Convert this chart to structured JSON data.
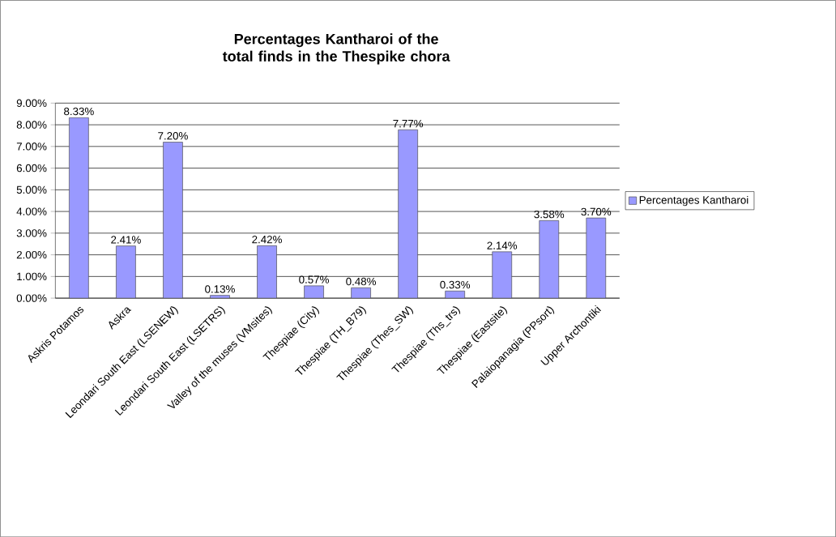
{
  "chart_data": {
    "type": "bar",
    "title": "Percentages Kantharoi of the total finds in the Thespike chora",
    "categories": [
      "Askris Potamos",
      "Askra",
      "Leondari South East (LSENEW)",
      "Leondari South East (LSETRS)",
      "Valley of the muses (VMsites)",
      "Thespiae (City)",
      "Thespiae (TH_B79)",
      "Thespiae (Thes_SW)",
      "Thespiae (Ths_trs)",
      "Thespiae (Eastsite)",
      "Palaiopanagia (PPsort)",
      "Upper Archontiki"
    ],
    "series": [
      {
        "name": "Percentages Kantharoi",
        "color": "#9999ff",
        "values": [
          8.33,
          2.41,
          7.2,
          0.13,
          2.42,
          0.57,
          0.48,
          7.77,
          0.33,
          2.14,
          3.58,
          3.7
        ],
        "value_labels": [
          "8.33%",
          "2.41%",
          "7.20%",
          "0.13%",
          "2.42%",
          "0.57%",
          "0.48%",
          "7.77%",
          "0.33%",
          "2.14%",
          "3.58%",
          "3.70%"
        ]
      }
    ],
    "ylim": [
      0,
      9
    ],
    "yticks": [
      {
        "value": 0,
        "label": "0.00%"
      },
      {
        "value": 1,
        "label": "1.00%"
      },
      {
        "value": 2,
        "label": "2.00%"
      },
      {
        "value": 3,
        "label": "3.00%"
      },
      {
        "value": 4,
        "label": "4.00%"
      },
      {
        "value": 5,
        "label": "5.00%"
      },
      {
        "value": 6,
        "label": "6.00%"
      },
      {
        "value": 7,
        "label": "7.00%"
      },
      {
        "value": 8,
        "label": "8.00%"
      },
      {
        "value": 9,
        "label": "9.00%"
      }
    ],
    "grid": "y",
    "legend": "right"
  }
}
